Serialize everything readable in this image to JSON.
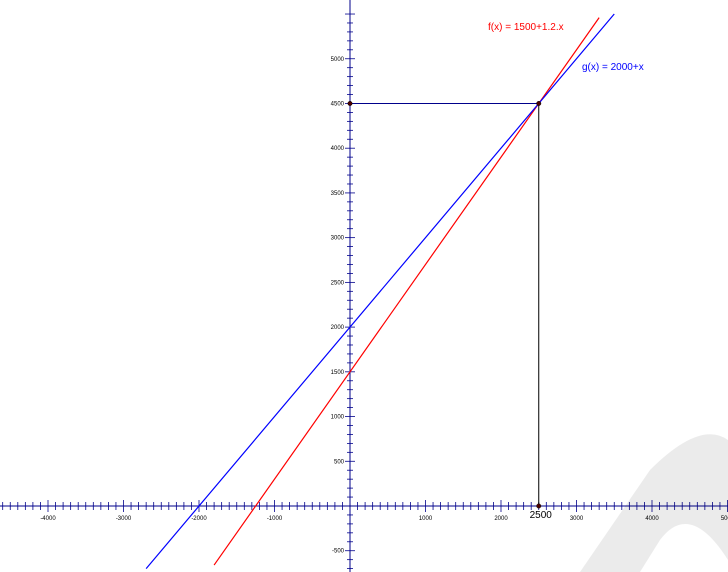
{
  "chart_data": {
    "type": "line",
    "title": "",
    "xlabel": "",
    "ylabel": "",
    "xlim": [
      -4600,
      5000
    ],
    "ylim": [
      -850,
      6600
    ],
    "x_tick_labels": [
      -4000,
      -3000,
      -2000,
      -1000,
      1000,
      2000,
      3000,
      4000,
      5000
    ],
    "y_tick_labels": [
      -500,
      500,
      1000,
      1500,
      2000,
      2500,
      3000,
      3500,
      4000,
      4500,
      5000
    ],
    "x_minor_step": 100,
    "y_minor_step": 100,
    "series": [
      {
        "name": "f(x) = 1500+1.2.x",
        "color": "#ff0000",
        "slope": 1.2,
        "intercept": 1500,
        "x": [
          -1800,
          3300
        ],
        "y": [
          -660,
          5460
        ]
      },
      {
        "name": "g(x) = 2000+x",
        "color": "#0000ff",
        "slope": 1,
        "intercept": 2000,
        "x": [
          -2700,
          3500
        ],
        "y": [
          -700,
          5500
        ]
      }
    ],
    "intersection": {
      "x": 2500,
      "y": 4500,
      "x_label": "2500",
      "y_label": "4500"
    },
    "grid": false,
    "legend": "labels next to lines"
  }
}
